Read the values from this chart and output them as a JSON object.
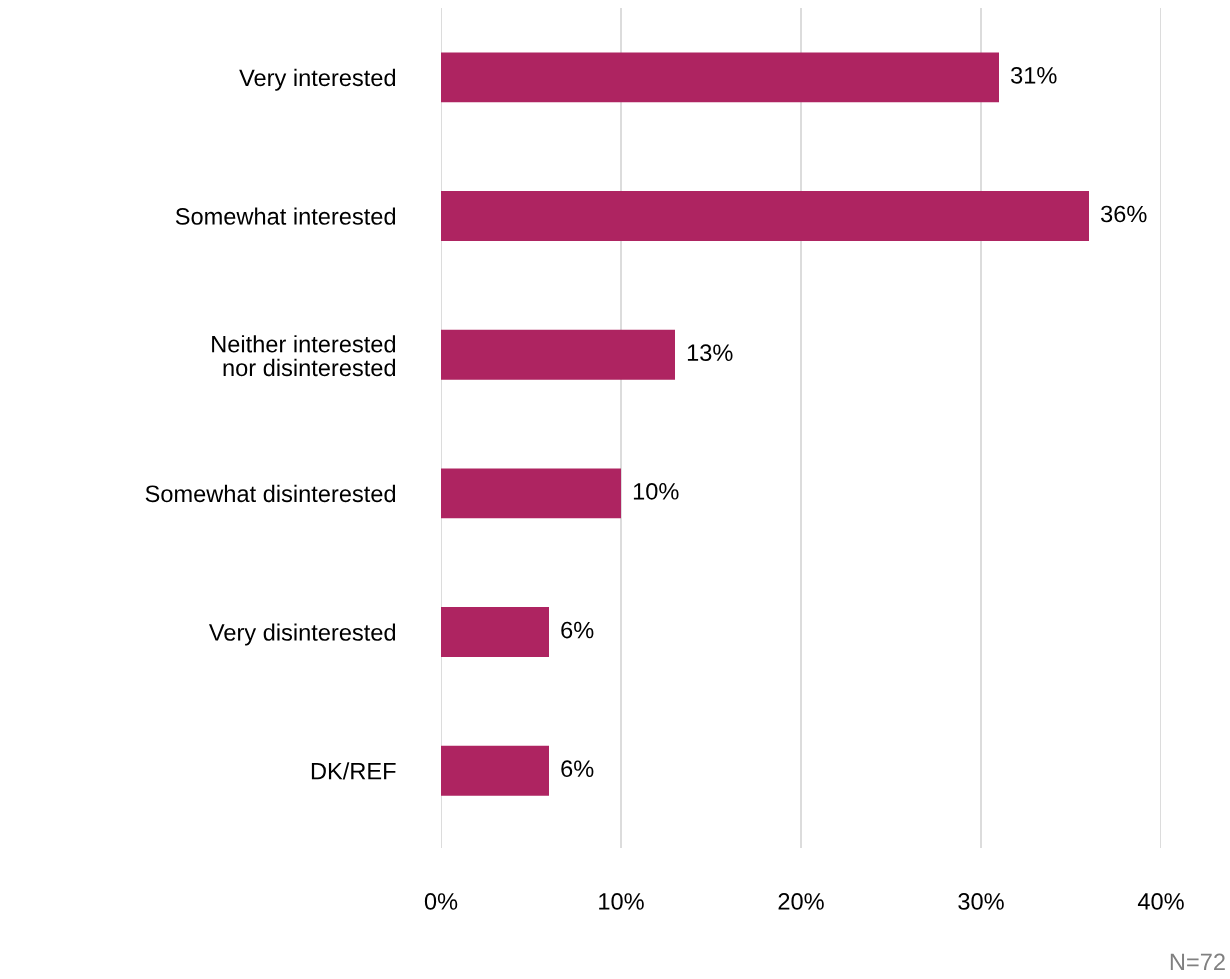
{
  "chart_data": {
    "type": "bar",
    "orientation": "horizontal",
    "categories": [
      "Very interested",
      "Somewhat interested",
      "Neither interested\nnor disinterested",
      "Somewhat disinterested",
      "Very disinterested",
      "DK/REF"
    ],
    "values": [
      31,
      36,
      13,
      10,
      6,
      6
    ],
    "value_labels": [
      "31%",
      "36%",
      "13%",
      "10%",
      "6%",
      "6%"
    ],
    "color": "#ae2461",
    "xlim": [
      0,
      40
    ],
    "xticks": [
      {
        "value": 0,
        "label": "0%"
      },
      {
        "value": 10,
        "label": "10%"
      },
      {
        "value": 20,
        "label": "20%"
      },
      {
        "value": 30,
        "label": "30%"
      },
      {
        "value": 40,
        "label": "40%"
      }
    ],
    "grid": "x",
    "annotations": [
      "N=72"
    ]
  }
}
